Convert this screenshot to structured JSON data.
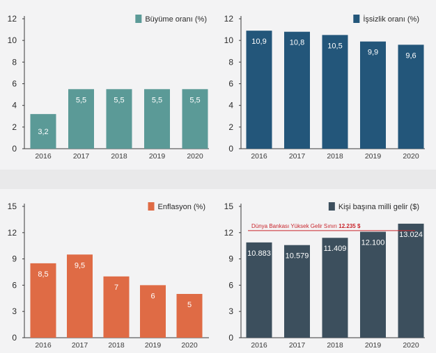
{
  "chart_data": [
    {
      "type": "bar",
      "title": "Büyüme oranı (%)",
      "color": "#5b9a97",
      "categories": [
        "2016",
        "2017",
        "2018",
        "2019",
        "2020"
      ],
      "values": [
        3.2,
        5.5,
        5.5,
        5.5,
        5.5
      ],
      "value_labels": [
        "3,2",
        "5,5",
        "5,5",
        "5,5",
        "5,5"
      ],
      "yticks": [
        0,
        2,
        4,
        6,
        8,
        10,
        12
      ],
      "ylim": [
        0,
        12
      ],
      "xlabel": "",
      "ylabel": "",
      "legend_position": "top-right",
      "grid": false
    },
    {
      "type": "bar",
      "title": "İşsizlik oranı (%)",
      "color": "#23567a",
      "categories": [
        "2016",
        "2017",
        "2018",
        "2019",
        "2020"
      ],
      "values": [
        10.9,
        10.8,
        10.5,
        9.9,
        9.6
      ],
      "value_labels": [
        "10,9",
        "10,8",
        "10,5",
        "9,9",
        "9,6"
      ],
      "yticks": [
        0,
        2,
        4,
        6,
        8,
        10,
        12
      ],
      "ylim": [
        0,
        12
      ],
      "xlabel": "",
      "ylabel": "",
      "legend_position": "top-right",
      "grid": false
    },
    {
      "type": "bar",
      "title": "Enflasyon (%)",
      "color": "#df6b45",
      "categories": [
        "2016",
        "2017",
        "2018",
        "2019",
        "2020"
      ],
      "values": [
        8.5,
        9.5,
        7,
        6,
        5
      ],
      "value_labels": [
        "8,5",
        "9,5",
        "7",
        "6",
        "5"
      ],
      "yticks": [
        0,
        3,
        6,
        9,
        12,
        15
      ],
      "ylim": [
        0,
        15
      ],
      "xlabel": "",
      "ylabel": "",
      "legend_position": "top-right",
      "grid": false
    },
    {
      "type": "bar",
      "title": "Kişi başına milli gelir ($)",
      "color": "#3c4f5d",
      "categories": [
        "2016",
        "2017",
        "2018",
        "2019",
        "2020"
      ],
      "values": [
        10883,
        10579,
        11409,
        12100,
        13024
      ],
      "value_labels": [
        "10.883",
        "10.579",
        "11.409",
        "12.100",
        "13.024"
      ],
      "ytick_values": [
        0,
        3000,
        6000,
        9000,
        12000,
        15000
      ],
      "ytick_labels": [
        "0",
        "3",
        "6",
        "9",
        "12",
        "15"
      ],
      "ylim": [
        0,
        15000
      ],
      "xlabel": "",
      "ylabel": "",
      "legend_position": "top-right",
      "grid": false,
      "reference_line": {
        "value": 12235,
        "label": "Dünya Bankası Yüksek Gelir Sınırı",
        "value_label": "12.235 $",
        "color": "#c8242b"
      }
    }
  ]
}
